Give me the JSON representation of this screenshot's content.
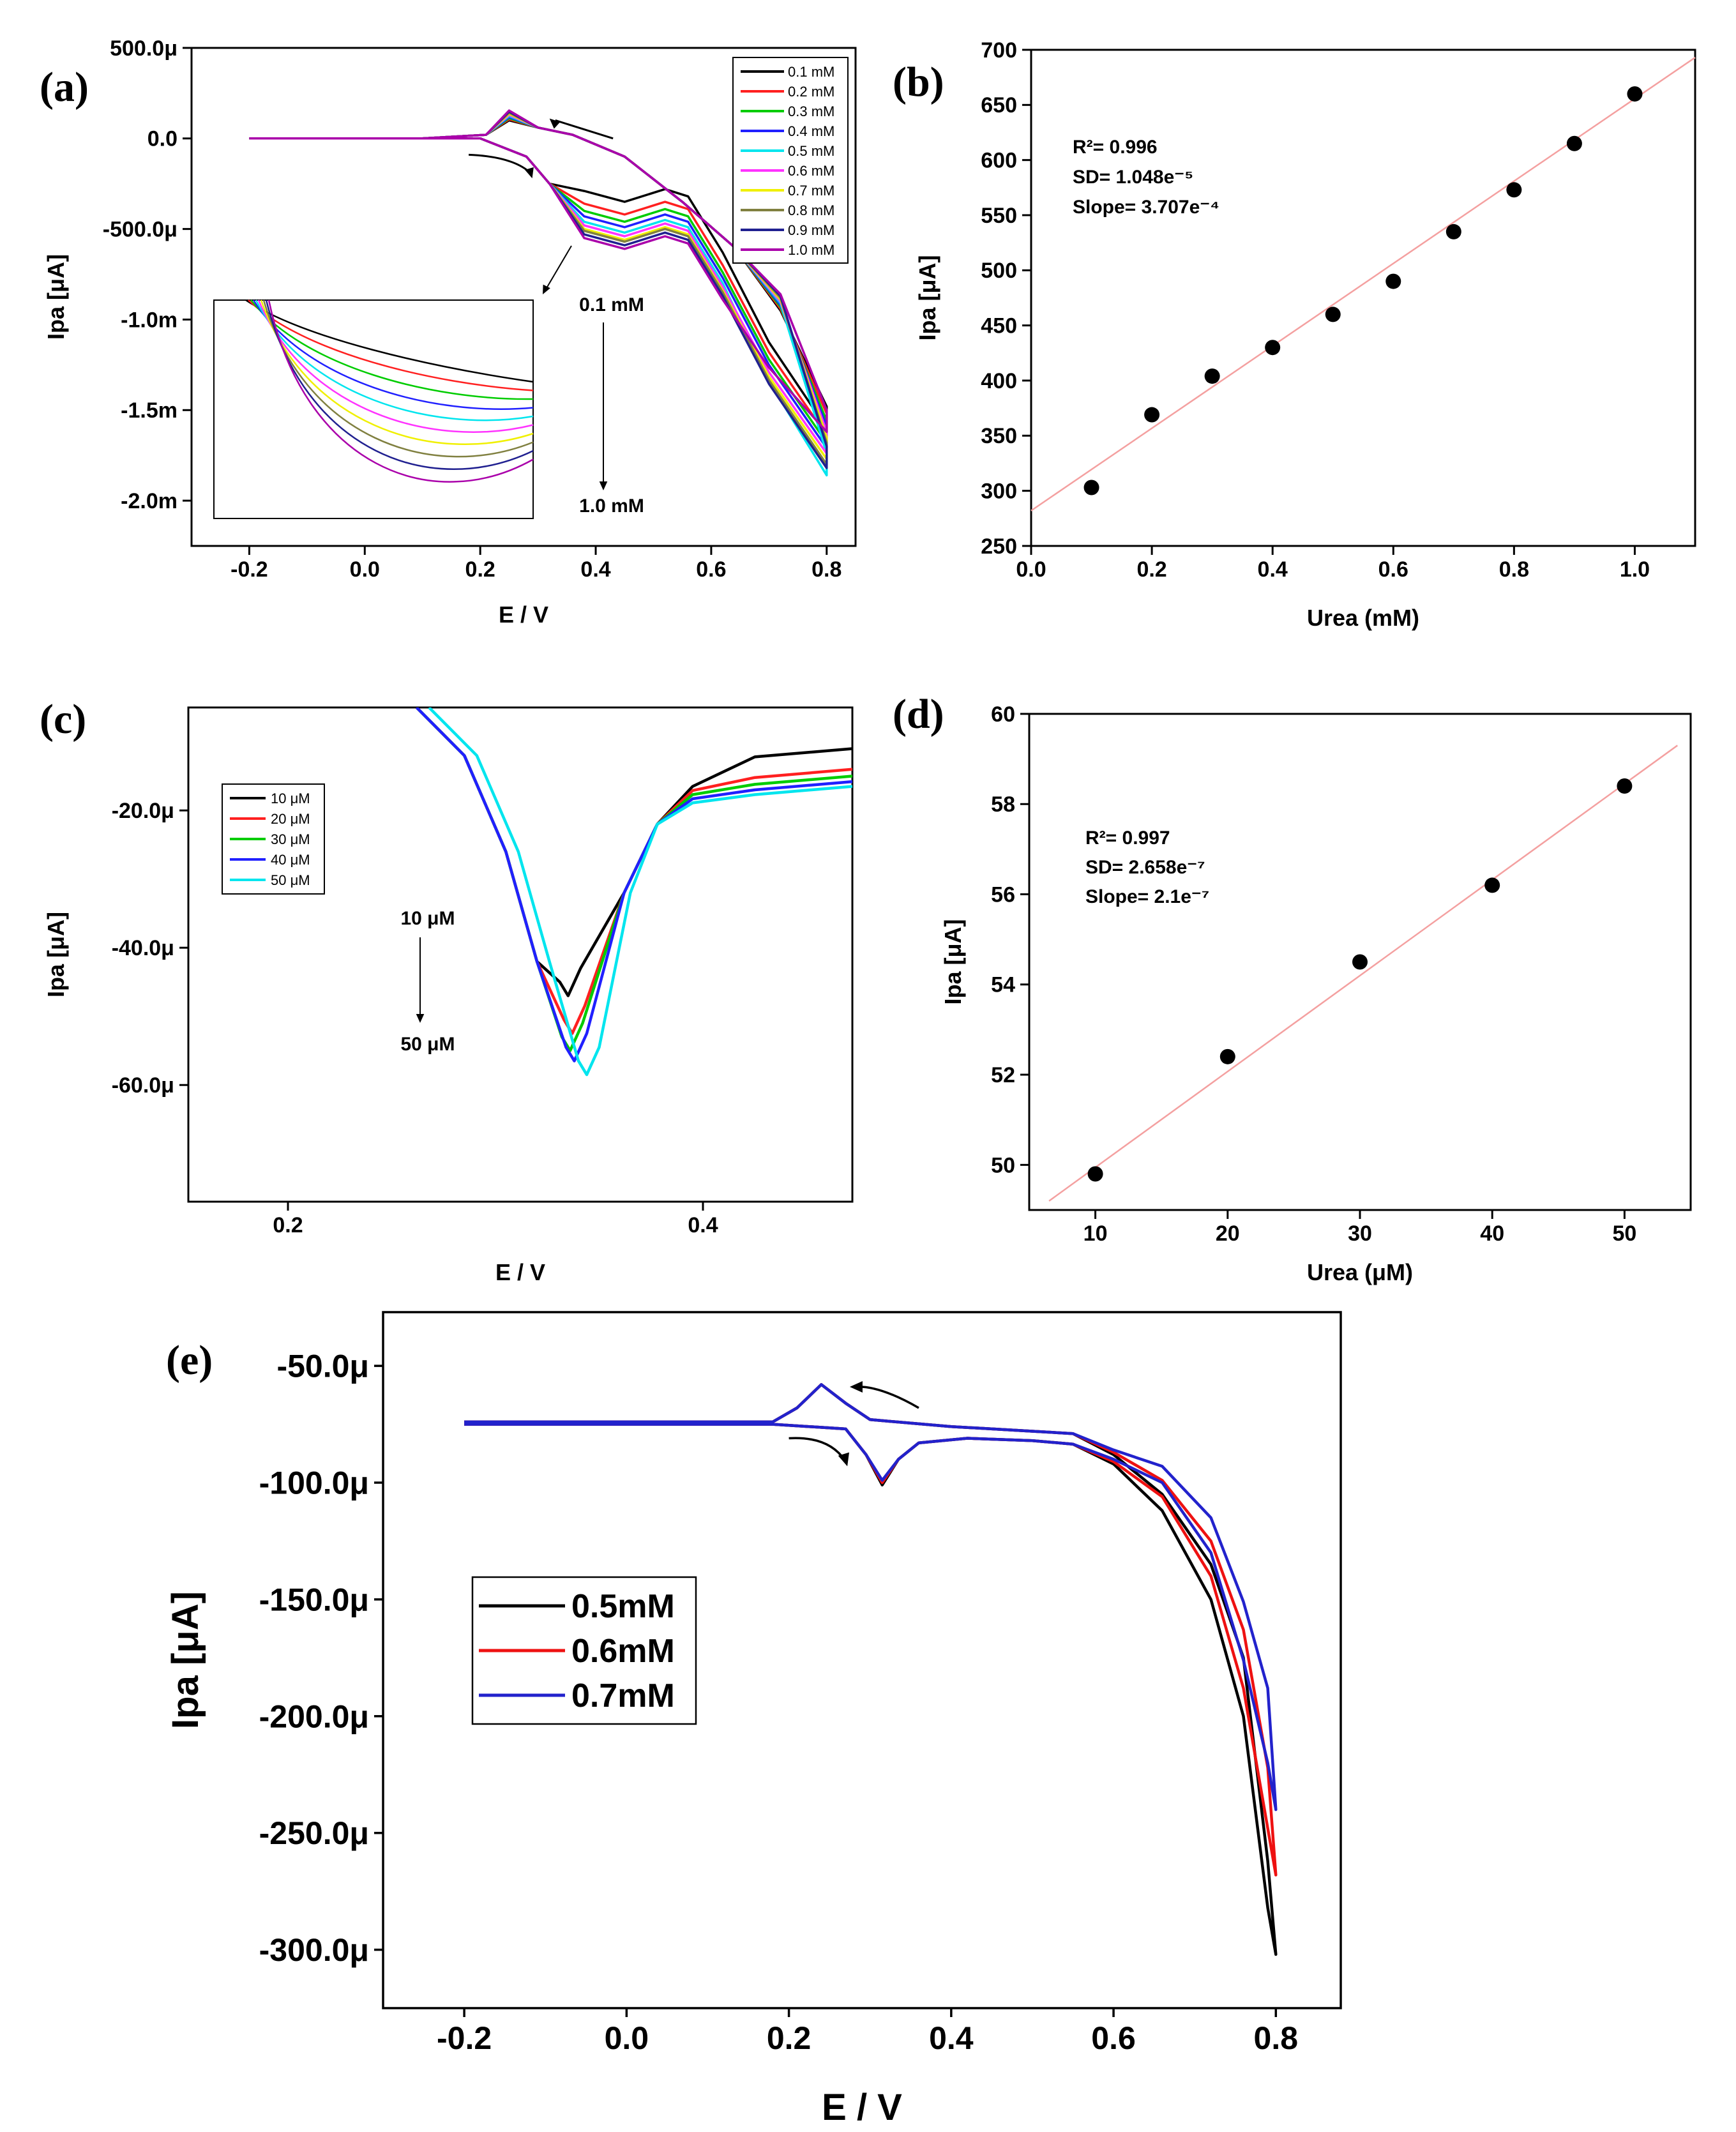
{
  "chart_data": [
    {
      "id": "a",
      "panel_label": "(a)",
      "type": "line",
      "title": "",
      "xlabel": "E / V",
      "ylabel": "Ipa [μA]",
      "xlim": [
        -0.3,
        0.85
      ],
      "ylim": [
        -2.25,
        0.5
      ],
      "xticks": [
        -0.2,
        0.0,
        0.2,
        0.4,
        0.6,
        0.8
      ],
      "xtick_labels": [
        "-0.2",
        "0.0",
        "0.2",
        "0.4",
        "0.6",
        "0.8"
      ],
      "yticks": [
        0.5,
        0.0,
        -0.5,
        -1.0,
        -1.5,
        -2.0
      ],
      "ytick_labels": [
        "500.0μ",
        "0.0",
        "-500.0μ",
        "-1.0m",
        "-1.5m",
        "-2.0m"
      ],
      "legend_position": "top-right",
      "series": [
        {
          "name": "0.1 mM",
          "color": "#000000",
          "valley": -0.35,
          "end": -1.6
        },
        {
          "name": "0.2 mM",
          "color": "#ff2020",
          "valley": -0.42,
          "end": -1.64
        },
        {
          "name": "0.3 mM",
          "color": "#00cc00",
          "valley": -0.46,
          "end": -1.68
        },
        {
          "name": "0.4 mM",
          "color": "#2020ff",
          "valley": -0.49,
          "end": -1.71
        },
        {
          "name": "0.5 mM",
          "color": "#00e5ee",
          "valley": -0.52,
          "end": -1.86
        },
        {
          "name": "0.6 mM",
          "color": "#ff33ff",
          "valley": -0.54,
          "end": -1.74
        },
        {
          "name": "0.7 mM",
          "color": "#f0f000",
          "valley": -0.56,
          "end": -1.77
        },
        {
          "name": "0.8 mM",
          "color": "#808040",
          "valley": -0.57,
          "end": -1.8
        },
        {
          "name": "0.9 mM",
          "color": "#202090",
          "valley": -0.59,
          "end": -1.82
        },
        {
          "name": "1.0 mM",
          "color": "#aa00aa",
          "valley": -0.61,
          "end": -1.62
        }
      ],
      "annotations": {
        "top": "0.1 mM",
        "bottom": "1.0 mM"
      }
    },
    {
      "id": "b",
      "panel_label": "(b)",
      "type": "scatter",
      "title": "",
      "xlabel": "Urea (mM)",
      "ylabel": "Ipa [μA]",
      "xlim": [
        0.0,
        1.1
      ],
      "ylim": [
        250,
        700
      ],
      "xticks": [
        0.0,
        0.2,
        0.4,
        0.6,
        0.8,
        1.0
      ],
      "xtick_labels": [
        "0.0",
        "0.2",
        "0.4",
        "0.6",
        "0.8",
        "1.0"
      ],
      "yticks": [
        250,
        300,
        350,
        400,
        450,
        500,
        550,
        600,
        650,
        700
      ],
      "ytick_labels": [
        "250",
        "300",
        "350",
        "400",
        "450",
        "500",
        "550",
        "600",
        "650",
        "700"
      ],
      "x": [
        0.1,
        0.2,
        0.3,
        0.4,
        0.5,
        0.6,
        0.7,
        0.8,
        0.9,
        1.0
      ],
      "y": [
        303,
        369,
        404,
        430,
        460,
        490,
        535,
        573,
        615,
        660
      ],
      "fit_line": {
        "x": [
          0.0,
          1.1
        ],
        "y": [
          282,
          693
        ]
      },
      "stats": {
        "r2": "R²= 0.996",
        "sd": "SD= 1.048e⁻⁵",
        "slope": "Slope= 3.707e⁻⁴"
      }
    },
    {
      "id": "c",
      "panel_label": "(c)",
      "type": "line",
      "title": "",
      "xlabel": "E / V",
      "ylabel": "Ipa [μA]",
      "xlim": [
        0.152,
        0.472
      ],
      "ylim": [
        -77,
        -5
      ],
      "xticks": [
        0.2,
        0.4
      ],
      "xtick_labels": [
        "0.2",
        "0.4"
      ],
      "yticks": [
        -20,
        -40,
        -60
      ],
      "ytick_labels": [
        "-20.0μ",
        "-40.0μ",
        "-60.0μ"
      ],
      "legend_position": "top-left",
      "series": [
        {
          "name": "10 μM",
          "color": "#000000",
          "peak_x": 0.335,
          "peak_y": -47,
          "end": -11
        },
        {
          "name": "20 μM",
          "color": "#ff2020",
          "peak_x": 0.337,
          "peak_y": -52.5,
          "end": -14
        },
        {
          "name": "30 μM",
          "color": "#00cc00",
          "peak_x": 0.336,
          "peak_y": -55,
          "end": -15
        },
        {
          "name": "40 μM",
          "color": "#2020ff",
          "peak_x": 0.338,
          "peak_y": -56.5,
          "end": -15.8
        },
        {
          "name": "50 μM",
          "color": "#00e5ee",
          "peak_x": 0.344,
          "peak_y": -58.5,
          "end": -16.5
        }
      ],
      "annotations": {
        "top": "10 μM",
        "bottom": "50 μM"
      }
    },
    {
      "id": "d",
      "panel_label": "(d)",
      "type": "scatter",
      "title": "",
      "xlabel": "Urea (μM)",
      "ylabel": "Ipa [μA]",
      "xlim": [
        5,
        55
      ],
      "ylim": [
        49,
        60
      ],
      "xticks": [
        10,
        20,
        30,
        40,
        50
      ],
      "xtick_labels": [
        "10",
        "20",
        "30",
        "40",
        "50"
      ],
      "yticks": [
        50,
        52,
        54,
        56,
        58,
        60
      ],
      "ytick_labels": [
        "50",
        "52",
        "54",
        "56",
        "58",
        "60"
      ],
      "x": [
        10,
        20,
        30,
        40,
        50
      ],
      "y": [
        49.8,
        52.4,
        54.5,
        56.2,
        58.4
      ],
      "fit_line": {
        "x": [
          6.5,
          54
        ],
        "y": [
          49.2,
          59.3
        ]
      },
      "stats": {
        "r2": "R²= 0.997",
        "sd": "SD= 2.658e⁻⁷",
        "slope": "Slope= 2.1e⁻⁷"
      }
    },
    {
      "id": "e",
      "panel_label": "(e)",
      "type": "line",
      "title": "",
      "xlabel": "E / V",
      "ylabel": "Ipa [μA]",
      "xlim": [
        -0.3,
        0.88
      ],
      "ylim": [
        -325,
        -27
      ],
      "xticks": [
        -0.2,
        0.0,
        0.2,
        0.4,
        0.6,
        0.8
      ],
      "xtick_labels": [
        "-0.2",
        "0.0",
        "0.2",
        "0.4",
        "0.6",
        "0.8"
      ],
      "yticks": [
        -50,
        -100,
        -150,
        -200,
        -250,
        -300
      ],
      "ytick_labels": [
        "-50.0μ",
        "-100.0μ",
        "-150.0μ",
        "-200.0μ",
        "-250.0μ",
        "-300.0μ"
      ],
      "legend_position": "middle-left",
      "series": [
        {
          "name": "0.5mM",
          "color": "#000000",
          "end": -302
        },
        {
          "name": "0.6mM",
          "color": "#ee1111",
          "end": -268
        },
        {
          "name": "0.7mM",
          "color": "#2222cc",
          "end": -240
        }
      ]
    }
  ]
}
